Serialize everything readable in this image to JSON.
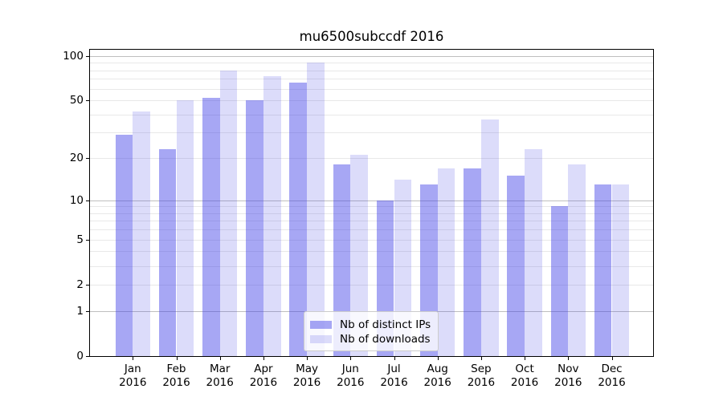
{
  "title": "mu6500subccdf 2016",
  "chart_data": {
    "type": "bar",
    "title": "mu6500subccdf 2016",
    "categories": [
      "Jan",
      "Feb",
      "Mar",
      "Apr",
      "May",
      "Jun",
      "Jul",
      "Aug",
      "Sep",
      "Oct",
      "Nov",
      "Dec"
    ],
    "year_label": "2016",
    "series": [
      {
        "name": "Nb of distinct IPs",
        "color": "rgba(60,60,230,0.45)",
        "values": [
          29,
          23,
          52,
          50,
          66,
          18,
          10,
          13,
          17,
          15,
          9,
          13
        ]
      },
      {
        "name": "Nb of downloads",
        "color": "rgba(60,60,230,0.18)",
        "values": [
          42,
          50,
          80,
          73,
          90,
          21,
          14,
          17,
          37,
          23,
          18,
          13
        ]
      }
    ],
    "xlabel": "",
    "ylabel": "",
    "y_axis": {
      "scale": "log1p",
      "ticks": [
        100,
        50,
        20,
        10,
        5,
        2,
        1,
        0
      ],
      "ylim": [
        0,
        110
      ]
    },
    "gridlines": {
      "major": [
        1,
        10,
        100
      ],
      "minor": [
        2,
        3,
        4,
        5,
        6,
        7,
        8,
        9,
        20,
        30,
        40,
        50,
        60,
        70,
        80,
        90
      ],
      "major_color": "#bfbfbf",
      "minor_color": "#e8e8e8",
      "grid_on": true
    },
    "legend": {
      "position": "lower center",
      "entries": [
        "Nb of distinct IPs",
        "Nb of downloads"
      ]
    },
    "colors": {
      "bar_distinct_ips": "rgba(60,60,230,0.45)",
      "bar_downloads": "rgba(60,60,230,0.18)",
      "text": "#000000",
      "spine": "#000000"
    }
  }
}
